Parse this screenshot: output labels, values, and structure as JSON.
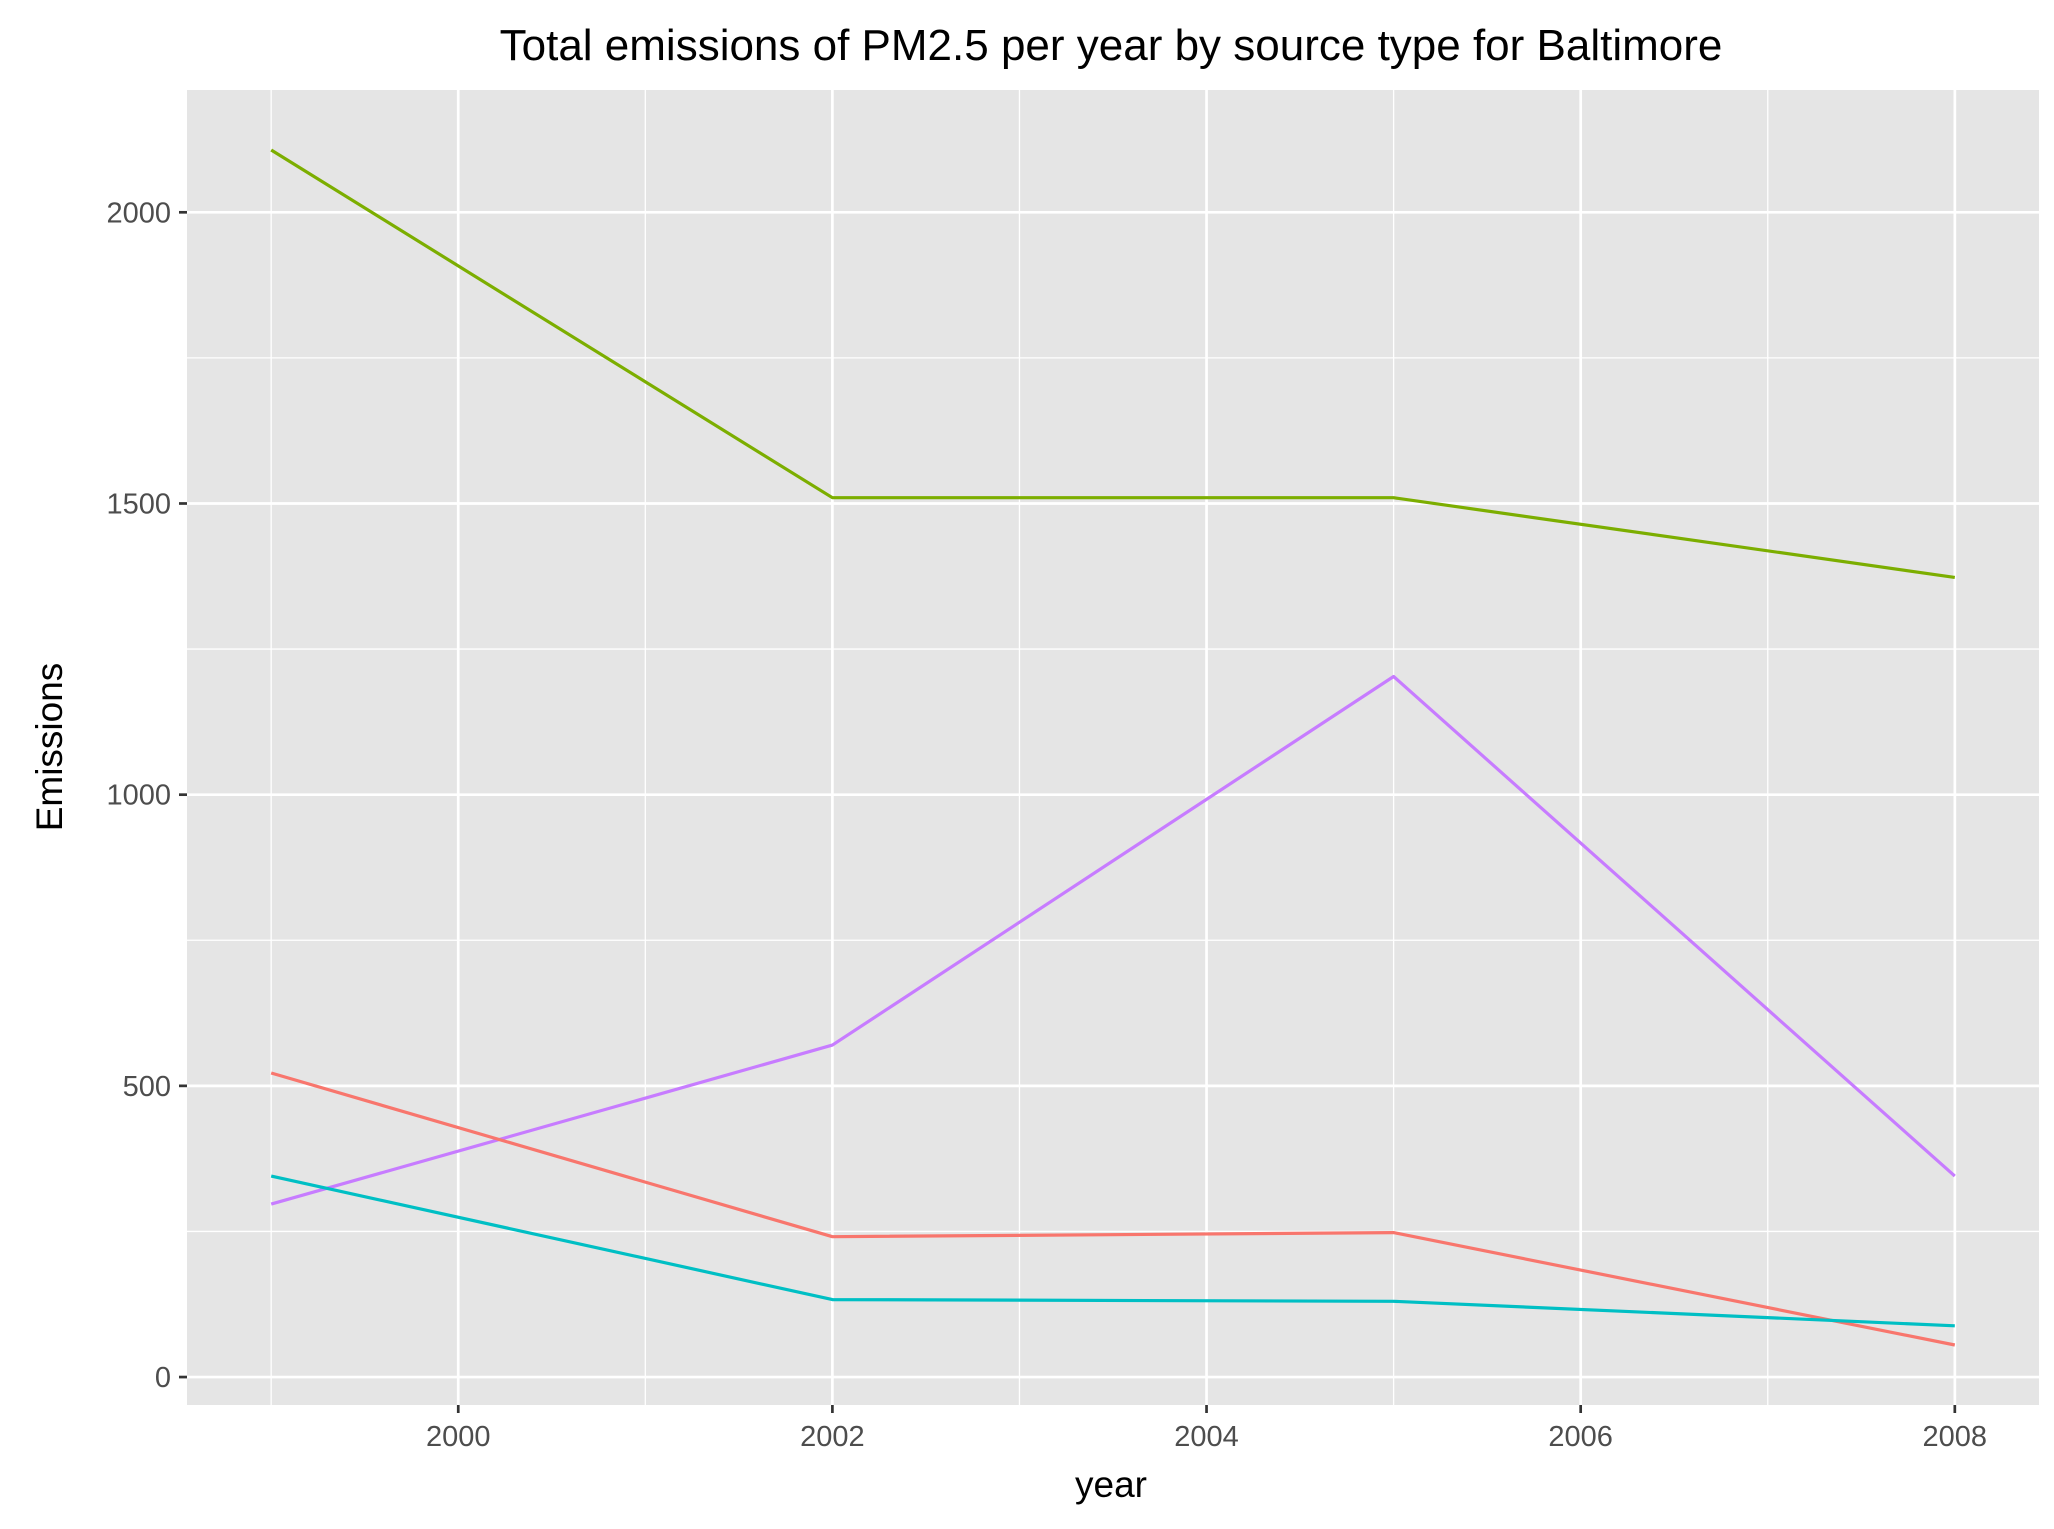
{
  "chart_data": {
    "type": "line",
    "title": "Total emissions of PM2.5 per year by source type for Baltimore",
    "xlabel": "year",
    "ylabel": "Emissions",
    "x": [
      1999,
      2002,
      2005,
      2008
    ],
    "xlim": [
      1998.55,
      2008.45
    ],
    "ylim": [
      -48,
      2210
    ],
    "x_ticks": [
      2000,
      2002,
      2004,
      2006,
      2008
    ],
    "y_ticks": [
      0,
      500,
      1000,
      1500,
      2000
    ],
    "grid": true,
    "legend": "none",
    "panel_background": "#e5e5e5",
    "grid_color": "#ffffff",
    "series": [
      {
        "color": "#7cae00",
        "values": [
          2107,
          1510,
          1510,
          1373
        ]
      },
      {
        "color": "#c77cff",
        "values": [
          297,
          570,
          1203,
          345
        ]
      },
      {
        "color": "#f8766d",
        "values": [
          522,
          241,
          248,
          55
        ]
      },
      {
        "color": "#00bfc4",
        "values": [
          345,
          133,
          130,
          88
        ]
      }
    ]
  }
}
